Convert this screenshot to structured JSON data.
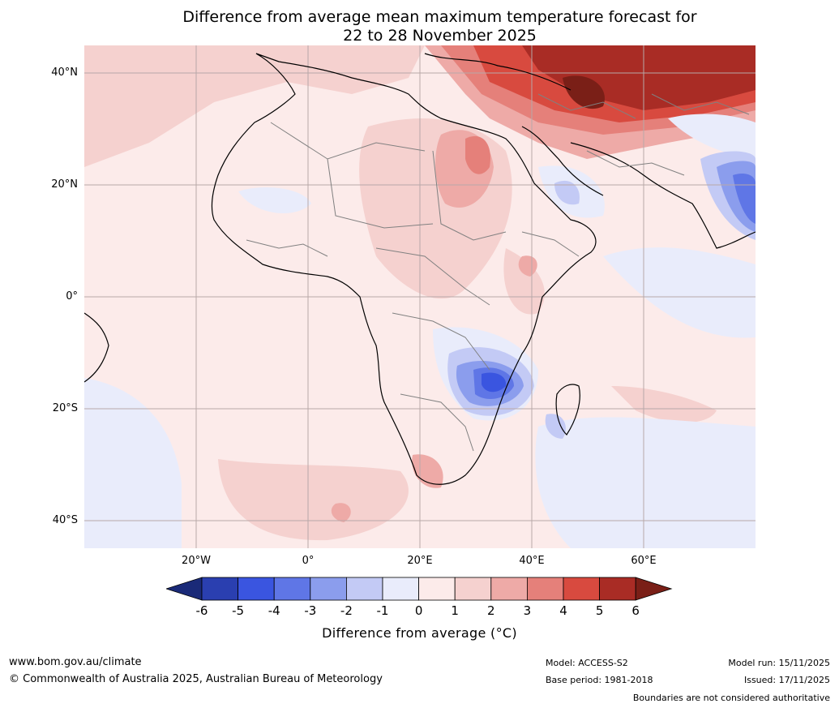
{
  "title": {
    "line1": "Difference from average mean maximum temperature forecast for",
    "line2": "22 to 28 November 2025"
  },
  "map": {
    "lat_labels": [
      "40°N",
      "20°N",
      "0°",
      "20°S",
      "40°S"
    ],
    "lon_labels": [
      "20°W",
      "0°",
      "20°E",
      "40°E",
      "60°E"
    ],
    "regions": [
      "Africa",
      "Europe",
      "Middle East",
      "Arabian Peninsula",
      "Madagascar",
      "India",
      "Atlantic Ocean",
      "Indian Ocean"
    ]
  },
  "colorbar": {
    "ticks": [
      "-6",
      "-5",
      "-4",
      "-3",
      "-2",
      "-1",
      "0",
      "1",
      "2",
      "3",
      "4",
      "5",
      "6"
    ],
    "colors": [
      "#1a2a78",
      "#2a3fb0",
      "#3a55e0",
      "#5f76e6",
      "#8b9ded",
      "#c3caf5",
      "#e9ecfb",
      "#fcebea",
      "#f5d1cf",
      "#eeaaa7",
      "#e5807a",
      "#d84a3f",
      "#a92c25",
      "#7a1f17"
    ],
    "label": "Difference from average (°C)"
  },
  "footer": {
    "website": "www.bom.gov.au/climate",
    "copyright": "© Commonwealth of Australia 2025, Australian Bureau of Meteorology",
    "model": "Model: ACCESS-S2",
    "base_period": "Base period: 1981-2018",
    "model_run": "Model run: 15/11/2025",
    "issued": "Issued: 17/11/2025",
    "disclaimer": "Boundaries are not considered authoritative"
  }
}
